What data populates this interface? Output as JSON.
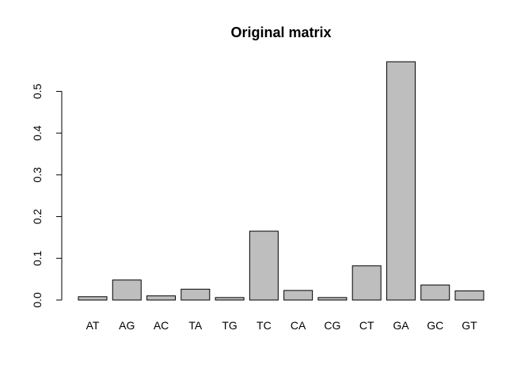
{
  "chart_data": {
    "type": "bar",
    "title": "Original matrix",
    "xlabel": "",
    "ylabel": "",
    "categories": [
      "AT",
      "AG",
      "AC",
      "TA",
      "TG",
      "TC",
      "CA",
      "CG",
      "CT",
      "GA",
      "GC",
      "GT"
    ],
    "values": [
      0.008,
      0.048,
      0.01,
      0.026,
      0.006,
      0.165,
      0.023,
      0.006,
      0.082,
      0.571,
      0.036,
      0.022
    ],
    "ylim": [
      0,
      0.571
    ],
    "yticks": [
      0.0,
      0.1,
      0.2,
      0.3,
      0.4,
      0.5
    ],
    "ytick_labels": [
      "0.0",
      "0.1",
      "0.2",
      "0.3",
      "0.4",
      "0.5"
    ],
    "grid": false,
    "legend": "none",
    "bar_color": "#bebebe",
    "bar_border_color": "#000000"
  }
}
